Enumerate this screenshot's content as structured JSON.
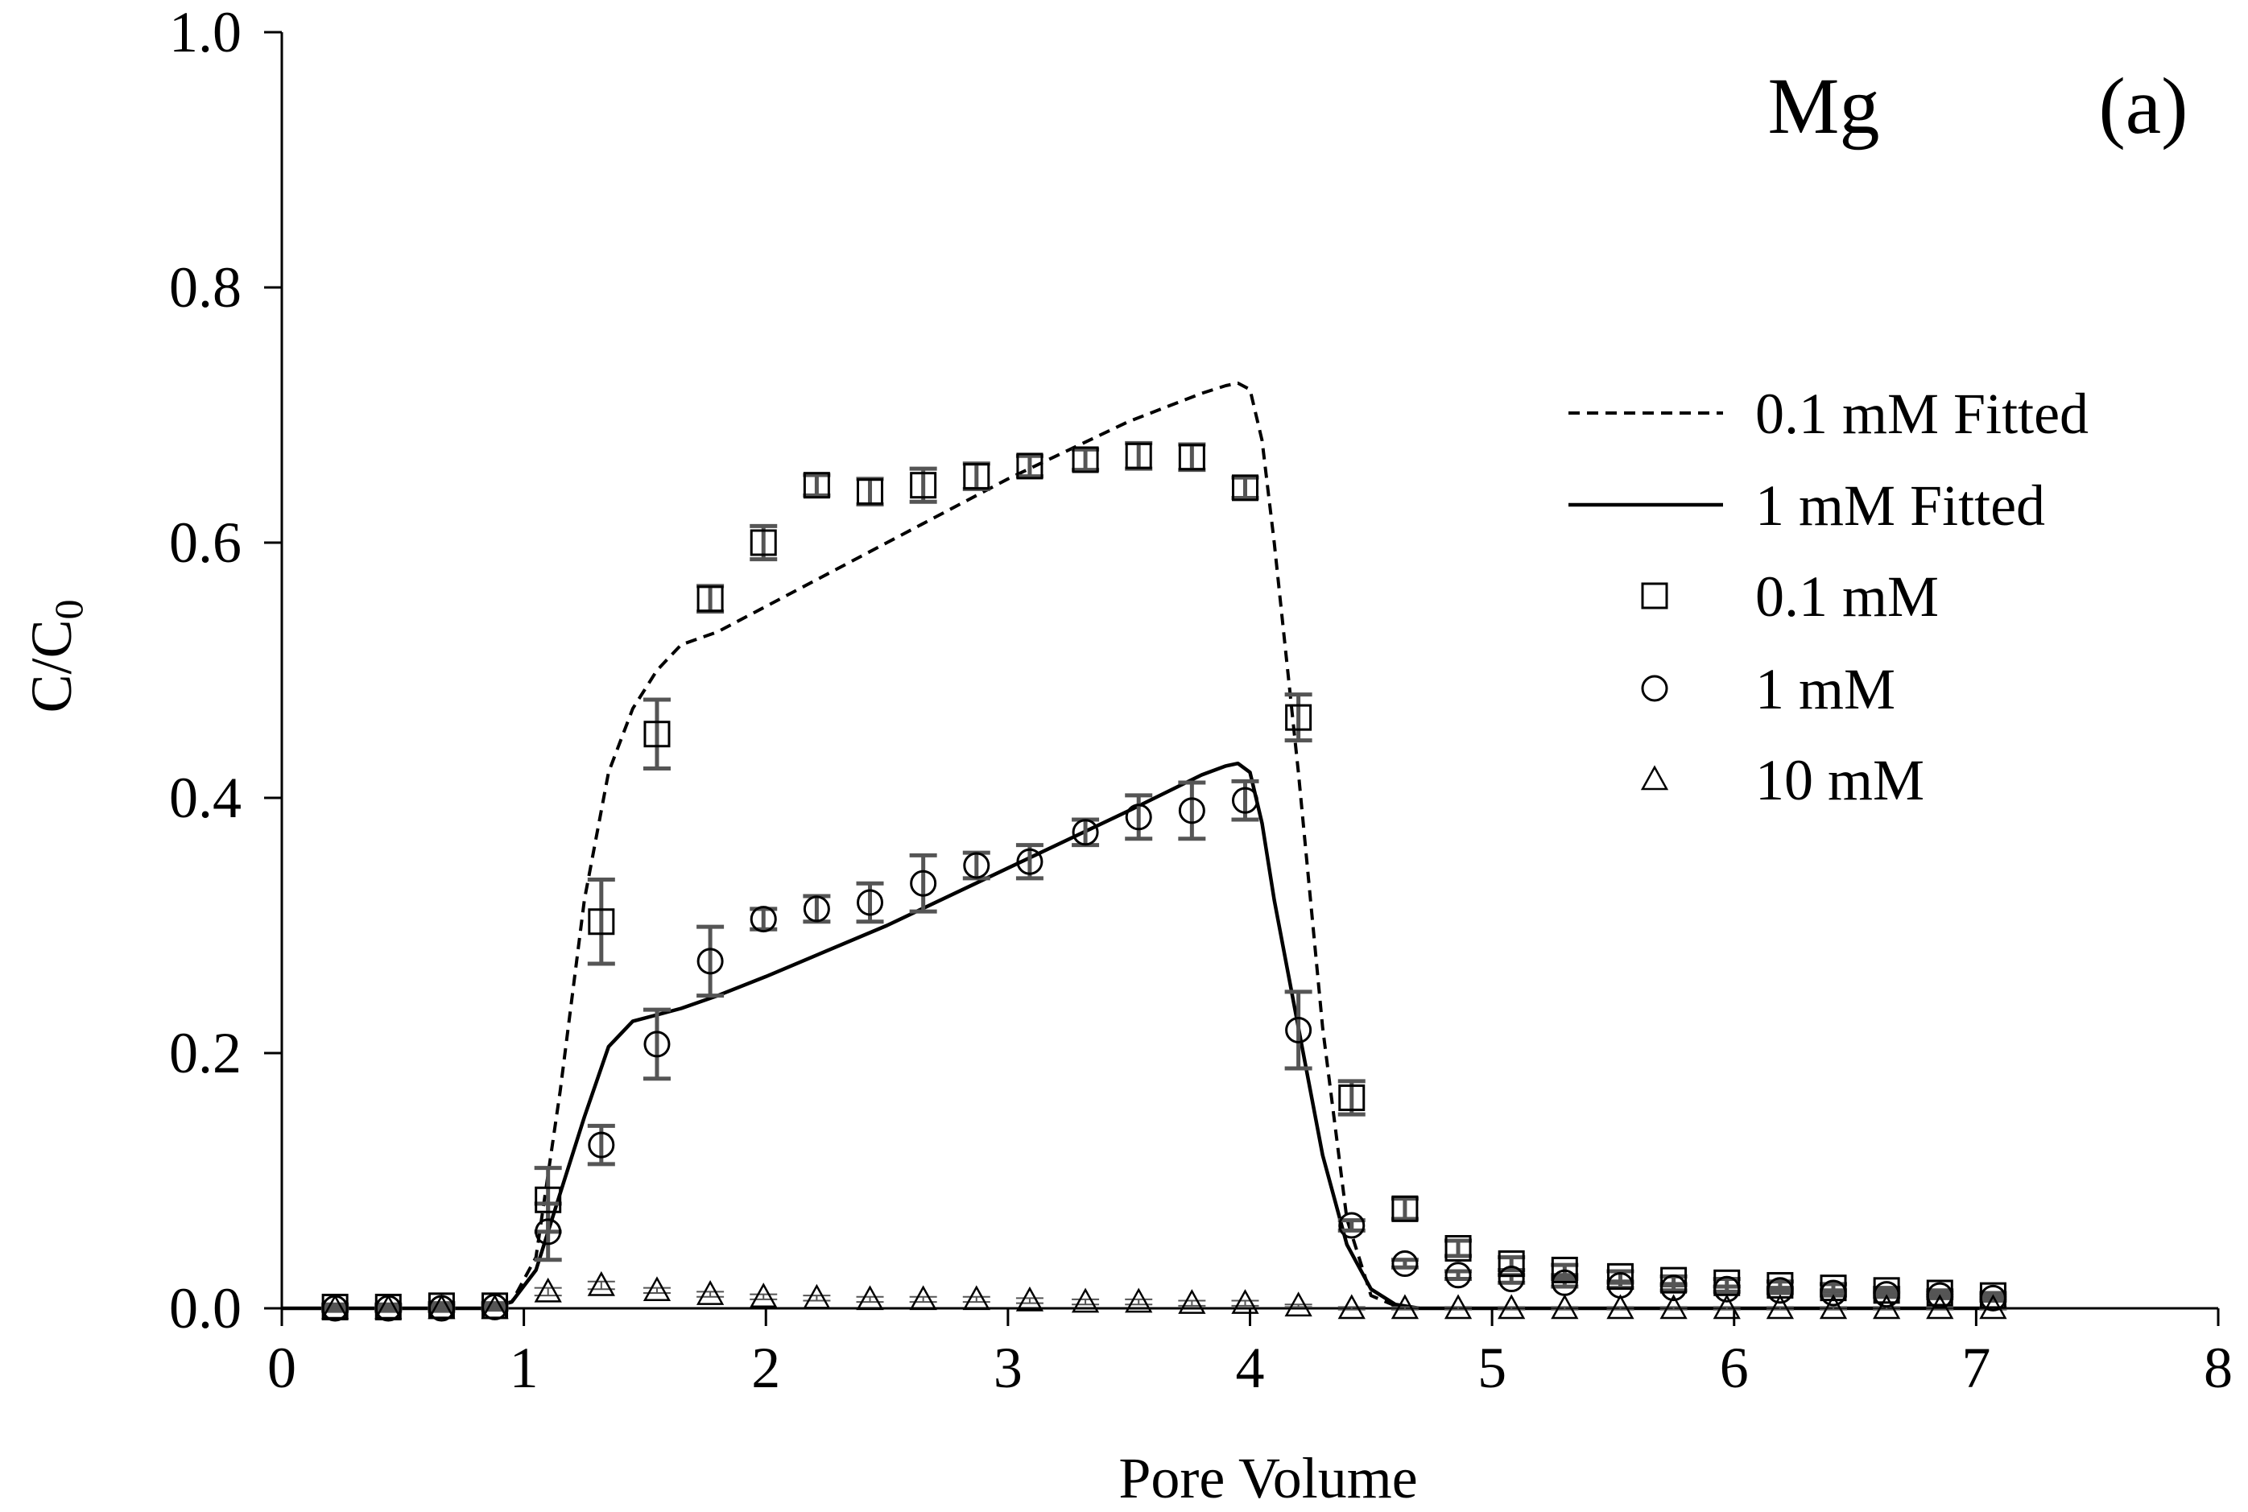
{
  "chart_data": {
    "type": "scatter",
    "panel_label": "(a)",
    "element": "Mg",
    "xlabel": "Pore Volume",
    "ylabel": "C/C",
    "ylabel_sub": "0",
    "xlim": [
      0,
      8
    ],
    "ylim": [
      0,
      1.0
    ],
    "x_ticks": [
      0,
      1,
      2,
      3,
      4,
      5,
      6,
      7,
      8
    ],
    "x_tick_labels": [
      "0",
      "1",
      "2",
      "3",
      "4",
      "5",
      "6",
      "7",
      "8"
    ],
    "y_ticks": [
      0,
      0.2,
      0.4,
      0.6,
      0.8,
      1.0
    ],
    "y_tick_labels": [
      "0.0",
      "0.2",
      "0.4",
      "0.6",
      "0.8",
      "1.0"
    ],
    "grid": false,
    "legend_position": "right",
    "legend": [
      {
        "label": "0.1 mM Fitted",
        "kind": "line-dashed"
      },
      {
        "label": "1 mM Fitted",
        "kind": "line-solid"
      },
      {
        "label": "0.1 mM",
        "kind": "square"
      },
      {
        "label": "1 mM",
        "kind": "circle"
      },
      {
        "label": "10 mM",
        "kind": "triangle"
      }
    ],
    "series": [
      {
        "name": "0.1 mM",
        "marker": "square",
        "x": [
          0.22,
          0.44,
          0.66,
          0.88,
          1.1,
          1.32,
          1.55,
          1.77,
          1.99,
          2.21,
          2.43,
          2.65,
          2.87,
          3.09,
          3.32,
          3.54,
          3.76,
          3.98,
          4.2,
          4.42,
          4.64,
          4.86,
          5.08,
          5.3,
          5.53,
          5.75,
          5.97,
          6.19,
          6.41,
          6.63,
          6.85,
          7.07
        ],
        "y": [
          0.001,
          0.001,
          0.002,
          0.002,
          0.085,
          0.303,
          0.45,
          0.556,
          0.6,
          0.645,
          0.64,
          0.645,
          0.652,
          0.66,
          0.665,
          0.668,
          0.667,
          0.643,
          0.463,
          0.165,
          0.078,
          0.047,
          0.035,
          0.03,
          0.025,
          0.022,
          0.02,
          0.018,
          0.016,
          0.014,
          0.012,
          0.01
        ],
        "err": [
          0.002,
          0.002,
          0.002,
          0.002,
          0.025,
          0.033,
          0.027,
          0.01,
          0.013,
          0.008,
          0.01,
          0.013,
          0.01,
          0.008,
          0.008,
          0.01,
          0.01,
          0.008,
          0.018,
          0.013,
          0.008,
          0.006,
          0.005,
          0.004,
          0.004,
          0.003,
          0.003,
          0.003,
          0.003,
          0.002,
          0.002,
          0.002
        ]
      },
      {
        "name": "1 mM",
        "marker": "circle",
        "x": [
          0.22,
          0.44,
          0.66,
          0.88,
          1.1,
          1.32,
          1.55,
          1.77,
          1.99,
          2.21,
          2.43,
          2.65,
          2.87,
          3.09,
          3.32,
          3.54,
          3.76,
          3.98,
          4.2,
          4.42,
          4.64,
          4.86,
          5.08,
          5.3,
          5.53,
          5.75,
          5.97,
          6.19,
          6.41,
          6.63,
          6.85,
          7.07
        ],
        "y": [
          0.0,
          0.0,
          0.0,
          0.001,
          0.06,
          0.128,
          0.207,
          0.272,
          0.305,
          0.313,
          0.318,
          0.333,
          0.347,
          0.35,
          0.373,
          0.385,
          0.39,
          0.398,
          0.218,
          0.065,
          0.035,
          0.026,
          0.023,
          0.02,
          0.018,
          0.016,
          0.015,
          0.014,
          0.012,
          0.011,
          0.01,
          0.008
        ],
        "err": [
          0.002,
          0.002,
          0.002,
          0.002,
          0.022,
          0.015,
          0.027,
          0.027,
          0.008,
          0.01,
          0.015,
          0.022,
          0.01,
          0.013,
          0.01,
          0.017,
          0.022,
          0.015,
          0.03,
          0.004,
          0.003,
          0.003,
          0.003,
          0.003,
          0.002,
          0.002,
          0.002,
          0.002,
          0.002,
          0.002,
          0.002,
          0.002
        ]
      },
      {
        "name": "10 mM",
        "marker": "triangle",
        "x": [
          0.22,
          0.44,
          0.66,
          0.88,
          1.1,
          1.32,
          1.55,
          1.77,
          1.99,
          2.21,
          2.43,
          2.65,
          2.87,
          3.09,
          3.32,
          3.54,
          3.76,
          3.98,
          4.2,
          4.42,
          4.64,
          4.86,
          5.08,
          5.3,
          5.53,
          5.75,
          5.97,
          6.19,
          6.41,
          6.63,
          6.85,
          7.07
        ],
        "y": [
          0.0,
          0.0,
          0.0,
          0.0,
          0.013,
          0.018,
          0.014,
          0.011,
          0.009,
          0.008,
          0.007,
          0.007,
          0.007,
          0.006,
          0.005,
          0.005,
          0.004,
          0.004,
          0.002,
          0.0,
          0.0,
          0.0,
          0.0,
          0.0,
          0.0,
          0.0,
          0.0,
          0.0,
          0.0,
          0.0,
          0.0,
          0.0
        ],
        "err": [
          0.001,
          0.001,
          0.001,
          0.001,
          0.003,
          0.003,
          0.002,
          0.002,
          0.002,
          0.002,
          0.002,
          0.002,
          0.002,
          0.002,
          0.002,
          0.002,
          0.002,
          0.002,
          0.001,
          0.001,
          0.001,
          0.001,
          0.001,
          0.001,
          0.001,
          0.001,
          0.001,
          0.001,
          0.001,
          0.001,
          0.001,
          0.001
        ]
      }
    ],
    "fitted": [
      {
        "name": "0.1 mM Fitted",
        "style": "dashed",
        "x": [
          0.0,
          0.85,
          0.95,
          1.05,
          1.15,
          1.25,
          1.35,
          1.45,
          1.55,
          1.65,
          1.8,
          2.0,
          2.5,
          3.0,
          3.5,
          3.8,
          3.9,
          3.95,
          4.0,
          4.05,
          4.1,
          4.2,
          4.3,
          4.4,
          4.5,
          4.6,
          4.7,
          5.0,
          6.0,
          7.1
        ],
        "y": [
          0.0,
          0.0,
          0.005,
          0.04,
          0.17,
          0.32,
          0.42,
          0.47,
          0.5,
          0.52,
          0.53,
          0.55,
          0.6,
          0.65,
          0.695,
          0.717,
          0.723,
          0.725,
          0.72,
          0.68,
          0.6,
          0.42,
          0.22,
          0.07,
          0.01,
          0.002,
          0.0,
          0.0,
          0.0,
          0.0
        ]
      },
      {
        "name": "1 mM Fitted",
        "style": "solid",
        "x": [
          0.0,
          0.85,
          0.95,
          1.05,
          1.15,
          1.25,
          1.35,
          1.45,
          1.55,
          1.65,
          1.8,
          2.0,
          2.5,
          3.0,
          3.5,
          3.8,
          3.9,
          3.95,
          4.0,
          4.05,
          4.1,
          4.2,
          4.3,
          4.4,
          4.5,
          4.6,
          4.7,
          5.0,
          6.0,
          7.1
        ],
        "y": [
          0.0,
          0.0,
          0.005,
          0.03,
          0.09,
          0.15,
          0.205,
          0.225,
          0.23,
          0.235,
          0.245,
          0.26,
          0.3,
          0.345,
          0.39,
          0.418,
          0.425,
          0.427,
          0.42,
          0.38,
          0.32,
          0.22,
          0.12,
          0.05,
          0.015,
          0.003,
          0.0,
          0.0,
          0.0,
          0.0
        ]
      }
    ]
  }
}
